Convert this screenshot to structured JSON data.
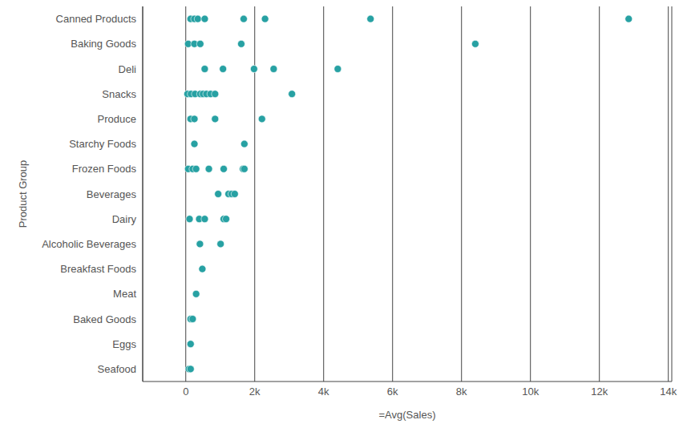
{
  "chart_data": {
    "type": "scatter",
    "x_label": "=Avg(Sales)",
    "y_label": "Product Group",
    "color": "#27a1a3",
    "marker": "circle",
    "grid": true,
    "categories": [
      "Canned Products",
      "Baking Goods",
      "Deli",
      "Snacks",
      "Produce",
      "Starchy Foods",
      "Frozen Foods",
      "Beverages",
      "Dairy",
      "Alcoholic Beverages",
      "Breakfast Foods",
      "Meat",
      "Baked Goods",
      "Eggs",
      "Seafood"
    ],
    "values": [
      [
        140,
        250,
        350,
        550,
        1680,
        2300,
        5360,
        12850
      ],
      [
        70,
        250,
        420,
        1610,
        8400
      ],
      [
        550,
        1080,
        1980,
        2550,
        4410
      ],
      [
        50,
        150,
        270,
        420,
        500,
        600,
        720,
        850,
        3080
      ],
      [
        140,
        250,
        850,
        2210
      ],
      [
        250,
        1700
      ],
      [
        70,
        200,
        300,
        670,
        1100,
        1660,
        1700
      ],
      [
        940,
        1240,
        1330,
        1420
      ],
      [
        110,
        390,
        550,
        1100,
        1170
      ],
      [
        410,
        1010
      ],
      [
        480
      ],
      [
        300
      ],
      [
        140,
        200
      ],
      [
        140
      ],
      [
        90,
        140
      ]
    ],
    "xlim": [
      -1250,
      14100
    ],
    "xticks": [
      0,
      {
        "value": 2000,
        "label": "2k"
      },
      {
        "value": 4000,
        "label": "4k"
      },
      {
        "value": 6000,
        "label": "6k"
      },
      {
        "value": 8000,
        "label": "8k"
      },
      {
        "value": 10000,
        "label": "10k"
      },
      {
        "value": 12000,
        "label": "12k"
      },
      {
        "value": 14000,
        "label": "14k"
      }
    ]
  }
}
